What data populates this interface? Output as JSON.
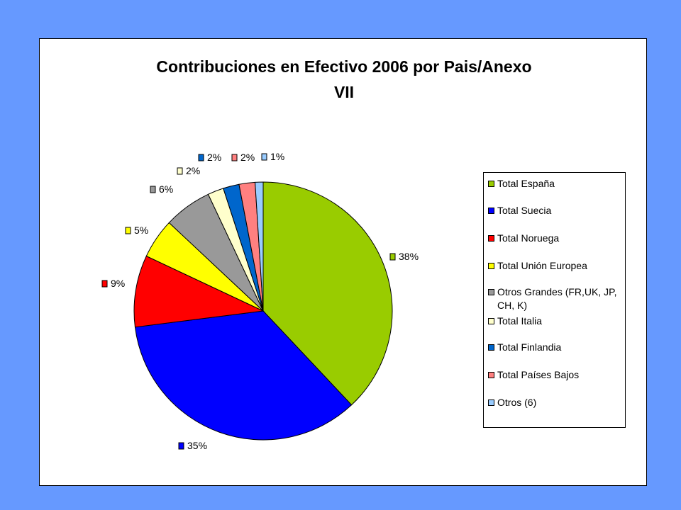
{
  "chart_data": {
    "type": "pie",
    "title": "Contribuciones en Efectivo 2006 por Pais/Anexo VII",
    "title_lines": [
      "Contribuciones en Efectivo 2006 por Pais/Anexo",
      "VII"
    ],
    "legend_position": "right",
    "slices": [
      {
        "name": "Total España",
        "value": 38,
        "label": "38%",
        "color": "#99cc00"
      },
      {
        "name": "Total Suecia",
        "value": 35,
        "label": "35%",
        "color": "#0000ff"
      },
      {
        "name": "Total Noruega",
        "value": 9,
        "label": "9%",
        "color": "#ff0000"
      },
      {
        "name": "Total Unión Europea",
        "value": 5,
        "label": "5%",
        "color": "#ffff00"
      },
      {
        "name": "Otros Grandes (FR,UK, JP, CH, K)",
        "value": 6,
        "label": "6%",
        "color": "#999999"
      },
      {
        "name": "Total Italia",
        "value": 2,
        "label": "2%",
        "color": "#ffffcc"
      },
      {
        "name": "Total Finlandia",
        "value": 2,
        "label": "2%",
        "color": "#0066cc"
      },
      {
        "name": "Total Países Bajos",
        "value": 2,
        "label": "2%",
        "color": "#ff8080"
      },
      {
        "name": "Otros (6)",
        "value": 1,
        "label": "1%",
        "color": "#99ccff"
      }
    ]
  }
}
